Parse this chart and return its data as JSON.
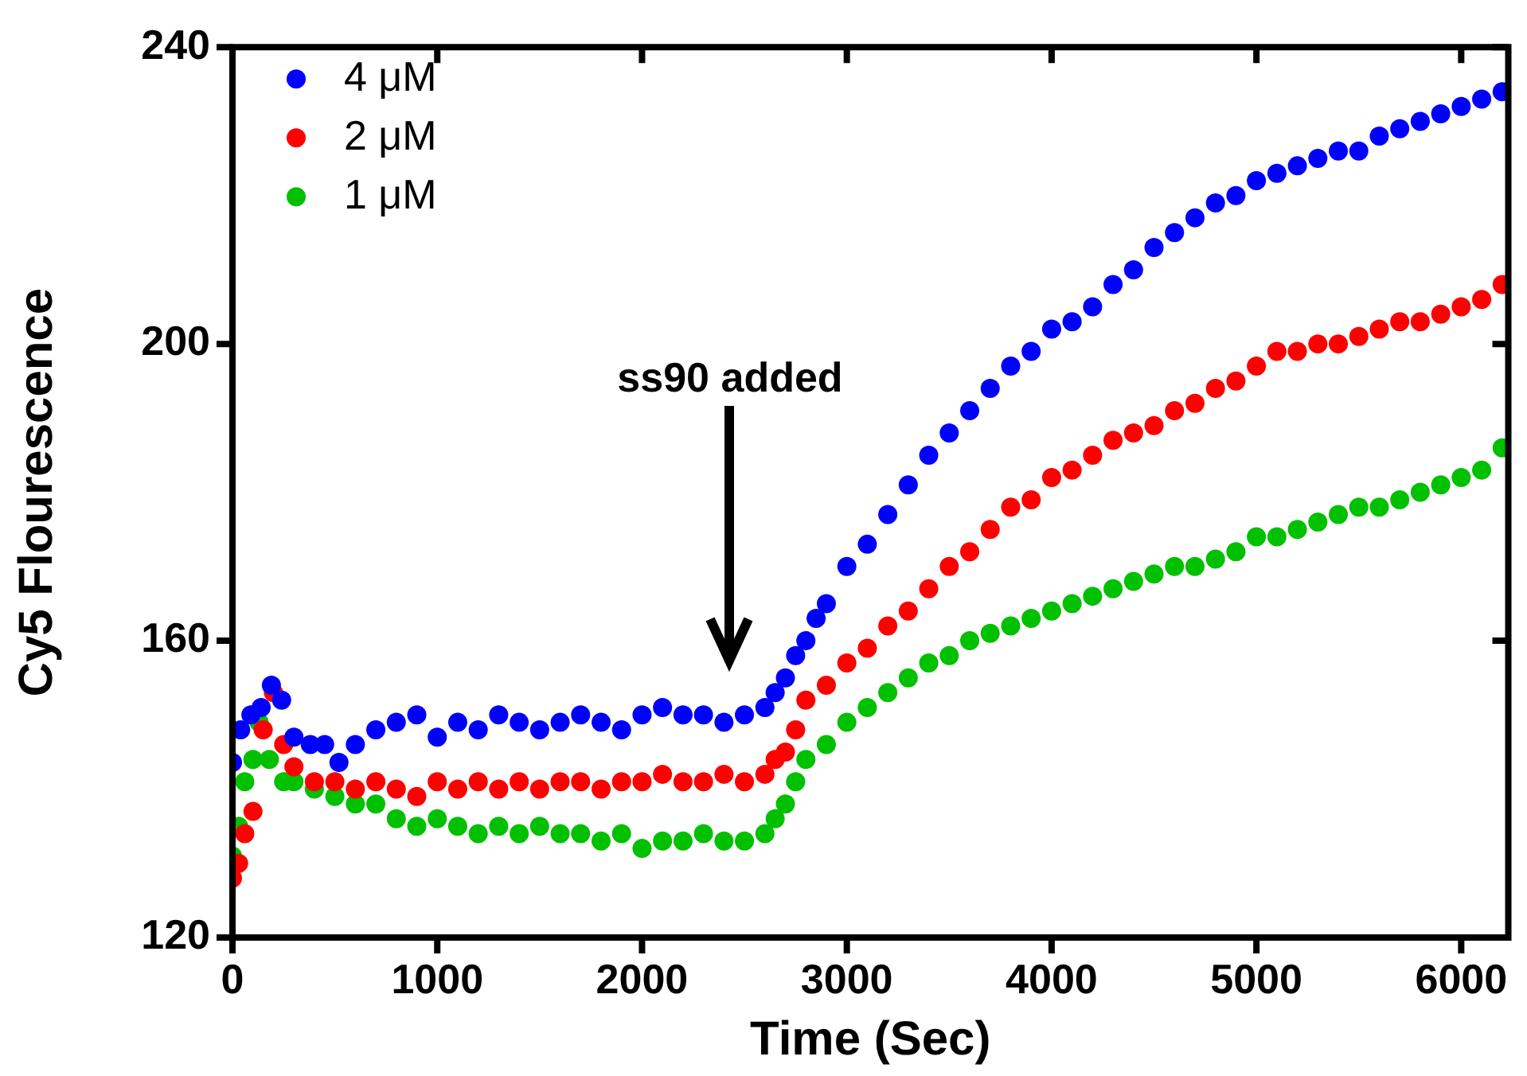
{
  "chart_data": {
    "type": "scatter",
    "xlabel": "Time (Sec)",
    "ylabel": "Cy5 Flourescence",
    "xlim": [
      0,
      6230
    ],
    "xticks": [
      0,
      1000,
      2000,
      3000,
      4000,
      5000,
      6000
    ],
    "ylim": [
      120,
      240
    ],
    "yticks": [
      120,
      160,
      200,
      240
    ],
    "grid": false,
    "legend": "top left",
    "marker": "circle",
    "annotations": [
      "ss90 added"
    ],
    "series": [
      {
        "name": "4 μM",
        "color": "#0000ff",
        "x": [
          0,
          40,
          90,
          140,
          190,
          240,
          300,
          380,
          450,
          520,
          600,
          700,
          800,
          900,
          1000,
          1100,
          1200,
          1300,
          1400,
          1500,
          1600,
          1700,
          1800,
          1900,
          2000,
          2100,
          2200,
          2300,
          2400,
          2500,
          2600,
          2650,
          2700,
          2750,
          2800,
          2850,
          2900,
          3000,
          3100,
          3200,
          3300,
          3400,
          3500,
          3600,
          3700,
          3800,
          3900,
          4000,
          4100,
          4200,
          4300,
          4400,
          4500,
          4600,
          4700,
          4800,
          4900,
          5000,
          5100,
          5200,
          5300,
          5400,
          5500,
          5600,
          5700,
          5800,
          5900,
          6000,
          6100,
          6200
        ],
        "values": [
          143.6,
          148,
          150,
          151,
          154,
          152,
          147,
          146,
          146,
          143.6,
          146,
          148,
          149,
          150,
          147,
          149,
          148,
          150,
          149,
          148,
          149,
          150,
          149,
          148,
          150,
          151,
          150,
          150,
          149,
          150,
          151,
          153,
          155,
          158,
          160,
          163,
          165,
          170,
          173,
          177,
          181,
          185,
          188,
          191,
          194,
          197,
          199,
          202,
          203,
          205,
          208,
          210,
          213,
          215,
          217,
          219,
          220,
          222,
          223,
          224,
          225,
          226,
          226,
          228,
          229,
          230,
          231,
          232,
          233,
          234
        ]
      },
      {
        "name": "2 μM",
        "color": "#ff0000",
        "x": [
          0,
          30,
          60,
          100,
          150,
          200,
          250,
          300,
          400,
          500,
          600,
          700,
          800,
          900,
          1000,
          1100,
          1200,
          1300,
          1400,
          1500,
          1600,
          1700,
          1800,
          1900,
          2000,
          2100,
          2200,
          2300,
          2400,
          2500,
          2600,
          2650,
          2700,
          2750,
          2800,
          2900,
          3000,
          3100,
          3200,
          3300,
          3400,
          3500,
          3600,
          3700,
          3800,
          3900,
          4000,
          4100,
          4200,
          4300,
          4400,
          4500,
          4600,
          4700,
          4800,
          4900,
          5000,
          5100,
          5200,
          5300,
          5400,
          5500,
          5600,
          5700,
          5800,
          5900,
          6000,
          6100,
          6200
        ],
        "values": [
          128,
          130,
          134,
          137,
          148,
          153,
          146,
          143,
          141,
          141,
          140,
          141,
          140,
          139,
          141,
          140,
          141,
          140,
          141,
          140,
          141,
          141,
          140,
          141,
          141,
          142,
          141,
          141,
          142,
          141,
          142,
          144,
          145,
          148,
          152,
          154,
          157,
          159,
          162,
          164,
          167,
          170,
          172,
          175,
          178,
          179,
          182,
          183,
          185,
          187,
          188,
          189,
          191,
          192,
          194,
          195,
          197,
          199,
          199,
          200,
          200,
          201,
          202,
          203,
          203,
          204,
          205,
          206,
          208
        ]
      },
      {
        "name": "1 μM",
        "color": "#00c000",
        "x": [
          0,
          30,
          60,
          100,
          130,
          180,
          250,
          300,
          400,
          500,
          600,
          700,
          800,
          900,
          1000,
          1100,
          1200,
          1300,
          1400,
          1500,
          1600,
          1700,
          1800,
          1900,
          2000,
          2100,
          2200,
          2300,
          2400,
          2500,
          2600,
          2650,
          2700,
          2750,
          2800,
          2900,
          3000,
          3100,
          3200,
          3300,
          3400,
          3500,
          3600,
          3700,
          3800,
          3900,
          4000,
          4100,
          4200,
          4300,
          4400,
          4500,
          4600,
          4700,
          4800,
          4900,
          5000,
          5100,
          5200,
          5300,
          5400,
          5500,
          5600,
          5700,
          5800,
          5900,
          6000,
          6100,
          6200
        ],
        "values": [
          131,
          135,
          141,
          144,
          149,
          144,
          141,
          141,
          140,
          139,
          138,
          138,
          136,
          135,
          136,
          135,
          134,
          135,
          134,
          135,
          134,
          134,
          133,
          134,
          132,
          133,
          133,
          134,
          133,
          133,
          134,
          136,
          138,
          141,
          144,
          146,
          149,
          151,
          153,
          155,
          157,
          158,
          160,
          161,
          162,
          163,
          164,
          165,
          166,
          167,
          168,
          169,
          170,
          170,
          171,
          172,
          174,
          174,
          175,
          176,
          177,
          178,
          178,
          179,
          180,
          181,
          182,
          183,
          186
        ]
      }
    ]
  }
}
